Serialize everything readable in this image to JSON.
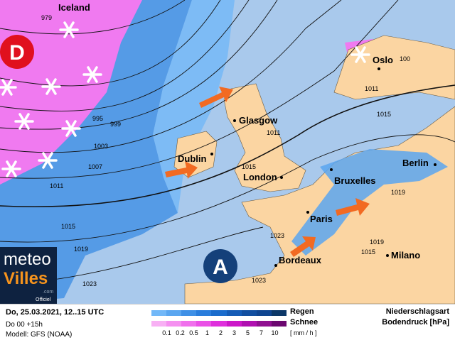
{
  "map": {
    "pressure_centers": [
      {
        "label": "D",
        "meaning": "low"
      },
      {
        "label": "A",
        "meaning": "high"
      }
    ],
    "cities": [
      "Iceland",
      "Oslo",
      "Glasgow",
      "Dublin",
      "London",
      "Bruxelles",
      "Berlin",
      "Paris",
      "Bordeaux",
      "Milano"
    ],
    "isobar_labels": [
      "979",
      "995",
      "999",
      "1003",
      "1007",
      "1011",
      "1015",
      "1019",
      "1023",
      "1011",
      "1015",
      "1011",
      "1015",
      "1019",
      "1023",
      "1019",
      "1015",
      "1023",
      "100"
    ],
    "colors": {
      "sea": "#a9c9ec",
      "land": "#fbd5a2",
      "rain": "#4b96e6",
      "snow": "#f07af0",
      "arrow": "#f26a22",
      "low": "#e0101e",
      "high": "#14407a"
    }
  },
  "logo": {
    "line1": "meteo",
    "line2": "Villes",
    "suffix": ".com",
    "tag": "Officiel"
  },
  "footer": {
    "date": "Do, 25.03.2021, 12..15 UTC",
    "run": "Do 00 +15h",
    "model": "Modell: GFS (NOAA)",
    "rain_label": "Regen",
    "snow_label": "Schnee",
    "unit": "[ mm / h ]",
    "ticks": [
      "0.1",
      "0.2",
      "0.5",
      "1",
      "2",
      "3",
      "5",
      "7",
      "10"
    ],
    "title1": "Niederschlagsart",
    "title2": "Bodendruck [hPa]",
    "rain_colors": [
      "#72b8f8",
      "#5aa6f0",
      "#3f90e6",
      "#2a7ddc",
      "#1b6ccc",
      "#155cb6",
      "#124fa0",
      "#0f4590",
      "#0c3868"
    ],
    "snow_colors": [
      "#f8b0f4",
      "#f590f0",
      "#f070ec",
      "#ea50e6",
      "#df30dc",
      "#cc18c8",
      "#b010b0",
      "#901090",
      "#6c0870"
    ]
  }
}
